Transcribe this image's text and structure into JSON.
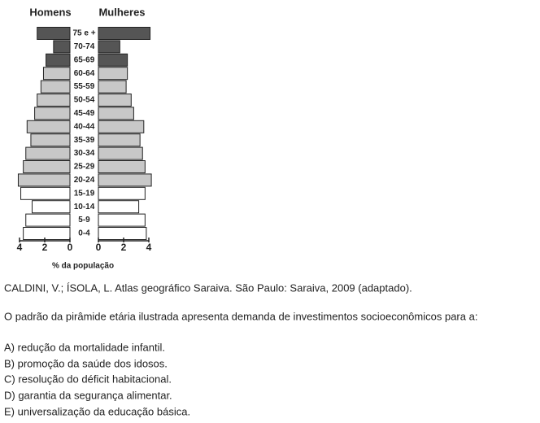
{
  "chart_data": {
    "type": "pyramid",
    "categories": [
      "0-4",
      "5-9",
      "10-14",
      "15-19",
      "20-24",
      "25-29",
      "30-34",
      "35-39",
      "40-44",
      "45-49",
      "50-54",
      "55-59",
      "60-64",
      "65-69",
      "70-74",
      "75 e +"
    ],
    "colors": [
      "#ffffff",
      "#ffffff",
      "#ffffff",
      "#ffffff",
      "#c8c8c8",
      "#c8c8c8",
      "#c8c8c8",
      "#c8c8c8",
      "#c8c8c8",
      "#c8c8c8",
      "#c8c8c8",
      "#c8c8c8",
      "#c8c8c8",
      "#555555",
      "#555555",
      "#555555"
    ],
    "series": [
      {
        "name": "Homens",
        "values": [
          3.7,
          3.5,
          3.0,
          3.9,
          4.1,
          3.7,
          3.5,
          3.1,
          3.4,
          2.8,
          2.6,
          2.3,
          2.1,
          1.9,
          1.3,
          2.6
        ]
      },
      {
        "name": "Mulheres",
        "values": [
          3.8,
          3.7,
          3.2,
          3.7,
          4.2,
          3.7,
          3.5,
          3.3,
          3.6,
          2.8,
          2.6,
          2.2,
          2.3,
          2.3,
          1.7,
          4.1
        ]
      }
    ],
    "xlim": [
      0,
      4
    ],
    "xticks": [
      0,
      2,
      4
    ],
    "xlabel": "% da população"
  },
  "document": {
    "source": "CALDINI, V.; ÍSOLA, L. Atlas geográfico Saraiva. São Paulo: Saraiva, 2009 (adaptado).",
    "question": "O padrão da pirâmide etária ilustrada apresenta demanda de investimentos socioeconômicos para a:",
    "options": [
      "A) redução da mortalidade infantil.",
      "B) promoção da saúde dos idosos.",
      "C) resolução do déficit habitacional.",
      "D) garantia da segurança alimentar.",
      "E) universalização da educação básica."
    ]
  }
}
